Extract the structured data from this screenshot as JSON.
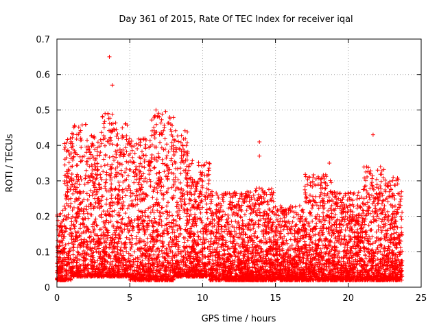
{
  "chart_data": {
    "type": "scatter",
    "title": "Day 361 of 2015, Rate Of TEC Index for receiver iqal",
    "xlabel": "GPS time / hours",
    "ylabel": "ROTI / TECUs",
    "xlim": [
      0,
      25
    ],
    "ylim": [
      0,
      0.7
    ],
    "xticks": [
      0,
      5,
      10,
      15,
      20,
      25
    ],
    "yticks": [
      0,
      0.1,
      0.2,
      0.3,
      0.4,
      0.5,
      0.6,
      0.7
    ],
    "xtick_labels": [
      "0",
      "5",
      "10",
      "15",
      "20",
      "25"
    ],
    "ytick_labels": [
      "0",
      "0.1",
      "0.2",
      "0.3",
      "0.4",
      "0.5",
      "0.6",
      "0.7"
    ],
    "grid": true,
    "marker": "+",
    "color": "#ff0000",
    "envelope": {
      "description": "approximate per-interval range of ROTI values (dense point cloud)",
      "segments": [
        {
          "x0": 0.0,
          "x1": 0.5,
          "low": 0.02,
          "high": 0.22
        },
        {
          "x0": 0.5,
          "x1": 1.0,
          "low": 0.02,
          "high": 0.42
        },
        {
          "x0": 1.0,
          "x1": 2.0,
          "low": 0.03,
          "high": 0.46
        },
        {
          "x0": 2.0,
          "x1": 3.0,
          "low": 0.03,
          "high": 0.43
        },
        {
          "x0": 3.0,
          "x1": 4.0,
          "low": 0.03,
          "high": 0.49
        },
        {
          "x0": 4.0,
          "x1": 5.0,
          "low": 0.03,
          "high": 0.47
        },
        {
          "x0": 5.0,
          "x1": 6.5,
          "low": 0.02,
          "high": 0.42
        },
        {
          "x0": 6.5,
          "x1": 8.0,
          "low": 0.02,
          "high": 0.5
        },
        {
          "x0": 8.0,
          "x1": 9.0,
          "low": 0.03,
          "high": 0.45
        },
        {
          "x0": 9.0,
          "x1": 10.5,
          "low": 0.03,
          "high": 0.36
        },
        {
          "x0": 10.5,
          "x1": 13.5,
          "low": 0.02,
          "high": 0.27
        },
        {
          "x0": 13.5,
          "x1": 15.0,
          "low": 0.02,
          "high": 0.28
        },
        {
          "x0": 15.0,
          "x1": 17.0,
          "low": 0.02,
          "high": 0.23
        },
        {
          "x0": 17.0,
          "x1": 19.0,
          "low": 0.02,
          "high": 0.32
        },
        {
          "x0": 19.0,
          "x1": 21.0,
          "low": 0.02,
          "high": 0.27
        },
        {
          "x0": 21.0,
          "x1": 22.5,
          "low": 0.02,
          "high": 0.34
        },
        {
          "x0": 22.5,
          "x1": 23.7,
          "low": 0.02,
          "high": 0.31
        }
      ]
    },
    "outliers": [
      {
        "x": 3.6,
        "y": 0.65
      },
      {
        "x": 3.8,
        "y": 0.57
      },
      {
        "x": 13.9,
        "y": 0.41
      },
      {
        "x": 13.9,
        "y": 0.37
      },
      {
        "x": 21.7,
        "y": 0.43
      },
      {
        "x": 18.7,
        "y": 0.35
      },
      {
        "x": 6.8,
        "y": 0.5
      },
      {
        "x": 3.5,
        "y": 0.49
      }
    ]
  }
}
